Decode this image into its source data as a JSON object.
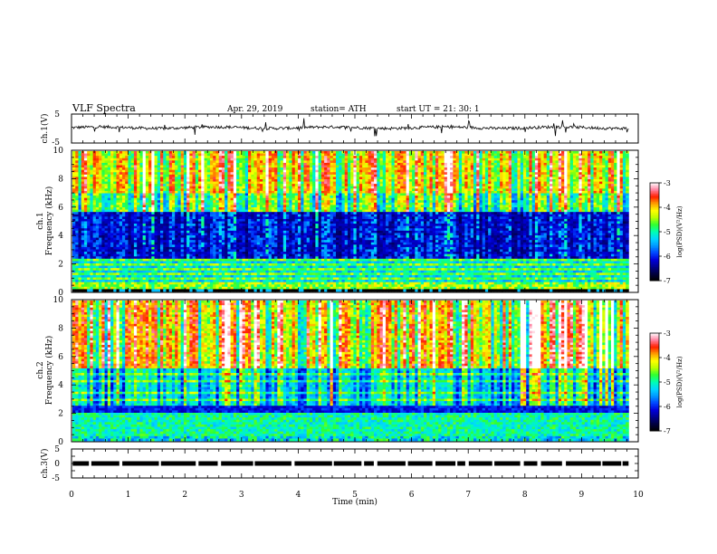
{
  "header": {
    "title": "VLF  Spectra",
    "date": "Apr. 29, 2019",
    "station": "station= ATH",
    "start": "start  UT  =    21: 30: 1"
  },
  "chart_data": [
    {
      "type": "line",
      "name": "ch1-waveform",
      "ylabel": "ch.1(V)",
      "ylim": [
        -5,
        5
      ],
      "yticks": [
        "5",
        "-5"
      ],
      "xlim": [
        0,
        10
      ],
      "data_extent": [
        0,
        9.83
      ],
      "baseline": 0.3,
      "noise_amplitude": 0.5
    },
    {
      "type": "heatmap",
      "name": "ch1-spectrogram",
      "ylabel_top": "ch.1",
      "ylabel": "Frequency  (kHz)",
      "ylim": [
        0,
        10
      ],
      "yticks": [
        "0",
        "2",
        "4",
        "6",
        "8",
        "10"
      ],
      "xlim": [
        0,
        10
      ],
      "data_extent": [
        0,
        9.83
      ],
      "colorbar": {
        "label": "log(PSD)(V²/Hz)",
        "range": [
          -7,
          -3
        ],
        "ticks": [
          "-3",
          "-4",
          "-5",
          "-6",
          "-7"
        ]
      }
    },
    {
      "type": "heatmap",
      "name": "ch2-spectrogram",
      "ylabel_top": "ch.2",
      "ylabel": "Frequency  (kHz)",
      "ylim": [
        0,
        10
      ],
      "yticks": [
        "0",
        "2",
        "4",
        "6",
        "8",
        "10"
      ],
      "xlim": [
        0,
        10
      ],
      "data_extent": [
        0,
        9.83
      ],
      "colorbar": {
        "label": "log(PSD)(V²/Hz)",
        "range": [
          -7,
          -3
        ],
        "ticks": [
          "-3",
          "-4",
          "-5",
          "-6",
          "-7"
        ]
      }
    },
    {
      "type": "line",
      "name": "ch3-waveform",
      "ylabel": "ch.3(V)",
      "ylim": [
        -5,
        5
      ],
      "yticks": [
        "5",
        "0",
        "-5"
      ],
      "xlim": [
        0,
        10
      ],
      "data_extent": [
        0,
        9.83
      ],
      "baseline": 0,
      "xlabel": "Time  (min)",
      "xticks": [
        "0",
        "1",
        "2",
        "3",
        "4",
        "5",
        "6",
        "7",
        "8",
        "9",
        "10"
      ]
    }
  ],
  "colors": {
    "colormap": [
      "#000000",
      "#000040",
      "#000090",
      "#0000dd",
      "#0048ff",
      "#0099ff",
      "#00d8ff",
      "#00ffb0",
      "#30ff30",
      "#b8ff00",
      "#ffff00",
      "#ffa000",
      "#ff2000",
      "#ff80a0",
      "#ffffff"
    ],
    "line": "#000000",
    "axes": "#000000"
  }
}
